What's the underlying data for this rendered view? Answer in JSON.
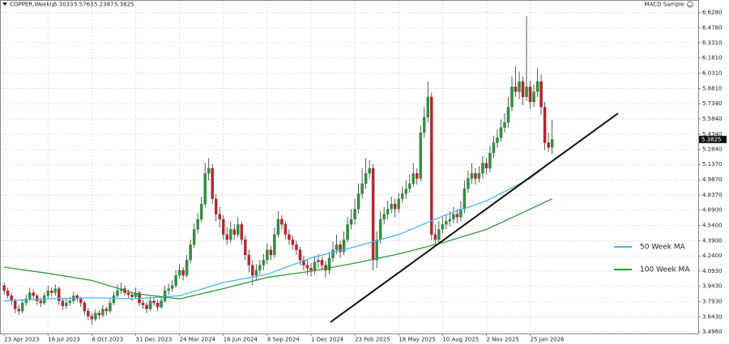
{
  "header": {
    "symbol": "COPPER,Weekly",
    "indicator": "MACD Sample"
  },
  "chart_data": {
    "type": "candlestick",
    "up_color": "#2f8f3f",
    "down_color": "#b3262c",
    "wick_color": "#333333",
    "grid": true,
    "xlim": [
      "2023-04-15",
      "2026-12-13"
    ],
    "ylim": [
      3.48,
      6.75
    ],
    "yticks": [
      {
        "value": 6.628,
        "label": "6.6280"
      },
      {
        "value": 6.478,
        "label": "6.4780"
      },
      {
        "value": 6.331,
        "label": "6.3310"
      },
      {
        "value": 6.181,
        "label": "6.1810"
      },
      {
        "value": 6.031,
        "label": "6.0310"
      },
      {
        "value": 5.881,
        "label": "5.8810"
      },
      {
        "value": 5.734,
        "label": "5.7340"
      },
      {
        "value": 5.584,
        "label": "5.5840"
      },
      {
        "value": 5.434,
        "label": "5.4340"
      },
      {
        "value": 5.284,
        "label": "5.2840"
      },
      {
        "value": 5.137,
        "label": "5.1370"
      },
      {
        "value": 4.987,
        "label": "4.9870"
      },
      {
        "value": 4.837,
        "label": "4.8370"
      },
      {
        "value": 4.69,
        "label": "4.6900"
      },
      {
        "value": 4.54,
        "label": "4.5400"
      },
      {
        "value": 4.39,
        "label": "4.3900"
      },
      {
        "value": 4.24,
        "label": "4.2400"
      },
      {
        "value": 4.093,
        "label": "4.0930"
      },
      {
        "value": 3.943,
        "label": "3.9430"
      },
      {
        "value": 3.793,
        "label": "3.7930"
      },
      {
        "value": 3.643,
        "label": "3.6430"
      },
      {
        "value": 3.496,
        "label": "3.4960"
      }
    ],
    "xticks": [
      {
        "value": "2023-04-23",
        "label": "23 Apr 2023"
      },
      {
        "value": "2023-07-16",
        "label": "16 Jul 2023"
      },
      {
        "value": "2023-10-08",
        "label": "8 Oct 2023"
      },
      {
        "value": "2023-12-31",
        "label": "31 Dec 2023"
      },
      {
        "value": "2024-03-24",
        "label": "24 Mar 2024"
      },
      {
        "value": "2024-06-16",
        "label": "16 Jun 2024"
      },
      {
        "value": "2024-09-08",
        "label": "8 Sep 2024"
      },
      {
        "value": "2024-12-01",
        "label": "1 Dec 2024"
      },
      {
        "value": "2025-02-23",
        "label": "23 Feb 2025"
      },
      {
        "value": "2025-05-18",
        "label": "18 May 2025"
      },
      {
        "value": "2025-08-10",
        "label": "10 Aug 2025"
      },
      {
        "value": "2025-11-02",
        "label": "2 Nov 2025"
      },
      {
        "value": "2026-01-25",
        "label": "25 Jan 2026"
      }
    ],
    "x": [
      "2023-04-23",
      "2023-04-30",
      "2023-05-07",
      "2023-05-14",
      "2023-05-21",
      "2023-05-28",
      "2023-06-04",
      "2023-06-11",
      "2023-06-18",
      "2023-06-25",
      "2023-07-02",
      "2023-07-09",
      "2023-07-16",
      "2023-07-23",
      "2023-07-30",
      "2023-08-06",
      "2023-08-13",
      "2023-08-20",
      "2023-08-27",
      "2023-09-03",
      "2023-09-10",
      "2023-09-17",
      "2023-09-24",
      "2023-10-01",
      "2023-10-08",
      "2023-10-15",
      "2023-10-22",
      "2023-10-29",
      "2023-11-05",
      "2023-11-12",
      "2023-11-19",
      "2023-11-26",
      "2023-12-03",
      "2023-12-10",
      "2023-12-17",
      "2023-12-24",
      "2023-12-31",
      "2024-01-07",
      "2024-01-14",
      "2024-01-21",
      "2024-01-28",
      "2024-02-04",
      "2024-02-11",
      "2024-02-18",
      "2024-02-25",
      "2024-03-03",
      "2024-03-10",
      "2024-03-17",
      "2024-03-24",
      "2024-03-31",
      "2024-04-07",
      "2024-04-14",
      "2024-04-21",
      "2024-04-28",
      "2024-05-05",
      "2024-05-12",
      "2024-05-19",
      "2024-05-26",
      "2024-06-02",
      "2024-06-09",
      "2024-06-16",
      "2024-06-23",
      "2024-06-30",
      "2024-07-07",
      "2024-07-14",
      "2024-07-21",
      "2024-07-28",
      "2024-08-04",
      "2024-08-11",
      "2024-08-18",
      "2024-08-25",
      "2024-09-01",
      "2024-09-08",
      "2024-09-15",
      "2024-09-22",
      "2024-09-29",
      "2024-10-06",
      "2024-10-13",
      "2024-10-20",
      "2024-10-27",
      "2024-11-03",
      "2024-11-10",
      "2024-11-17",
      "2024-11-24",
      "2024-12-01",
      "2024-12-08",
      "2024-12-15",
      "2024-12-22",
      "2024-12-29",
      "2025-01-05",
      "2025-01-12",
      "2025-01-19",
      "2025-01-26",
      "2025-02-02",
      "2025-02-09",
      "2025-02-16",
      "2025-02-23",
      "2025-03-02",
      "2025-03-09",
      "2025-03-16",
      "2025-03-23",
      "2025-03-30",
      "2025-04-06",
      "2025-04-13",
      "2025-04-20",
      "2025-04-27",
      "2025-05-04",
      "2025-05-11",
      "2025-05-18",
      "2025-05-25",
      "2025-06-01",
      "2025-06-08",
      "2025-06-15",
      "2025-06-22",
      "2025-06-29",
      "2025-07-06",
      "2025-07-13",
      "2025-07-20",
      "2025-07-27",
      "2025-08-03",
      "2025-08-10",
      "2025-08-17",
      "2025-08-24",
      "2025-08-31",
      "2025-09-07",
      "2025-09-14",
      "2025-09-21",
      "2025-09-28",
      "2025-10-05",
      "2025-10-12",
      "2025-10-19",
      "2025-10-26",
      "2025-11-02",
      "2025-11-09",
      "2025-11-16",
      "2025-11-23",
      "2025-11-30",
      "2025-12-07",
      "2025-12-14",
      "2025-12-21",
      "2025-12-28",
      "2026-01-04",
      "2026-01-11",
      "2026-01-18",
      "2026-01-25",
      "2026-02-01",
      "2026-02-08",
      "2026-02-15",
      "2026-02-22",
      "2026-03-01",
      "2026-03-08"
    ],
    "ohlc": [
      [
        3.95,
        3.98,
        3.86,
        3.9
      ],
      [
        3.9,
        3.93,
        3.82,
        3.85
      ],
      [
        3.85,
        3.88,
        3.76,
        3.8
      ],
      [
        3.8,
        3.82,
        3.68,
        3.72
      ],
      [
        3.72,
        3.76,
        3.66,
        3.7
      ],
      [
        3.7,
        3.82,
        3.68,
        3.78
      ],
      [
        3.78,
        3.86,
        3.75,
        3.82
      ],
      [
        3.82,
        3.93,
        3.8,
        3.88
      ],
      [
        3.88,
        3.91,
        3.82,
        3.85
      ],
      [
        3.85,
        3.87,
        3.76,
        3.8
      ],
      [
        3.8,
        3.83,
        3.74,
        3.78
      ],
      [
        3.78,
        3.88,
        3.76,
        3.85
      ],
      [
        3.85,
        3.95,
        3.83,
        3.9
      ],
      [
        3.9,
        3.93,
        3.84,
        3.88
      ],
      [
        3.88,
        3.96,
        3.85,
        3.92
      ],
      [
        3.92,
        3.94,
        3.76,
        3.8
      ],
      [
        3.8,
        3.83,
        3.71,
        3.75
      ],
      [
        3.75,
        3.82,
        3.72,
        3.78
      ],
      [
        3.78,
        3.84,
        3.75,
        3.8
      ],
      [
        3.8,
        3.89,
        3.77,
        3.85
      ],
      [
        3.85,
        3.87,
        3.79,
        3.82
      ],
      [
        3.82,
        3.84,
        3.74,
        3.78
      ],
      [
        3.78,
        3.8,
        3.66,
        3.7
      ],
      [
        3.7,
        3.73,
        3.61,
        3.65
      ],
      [
        3.65,
        3.68,
        3.57,
        3.62
      ],
      [
        3.62,
        3.72,
        3.6,
        3.68
      ],
      [
        3.68,
        3.71,
        3.62,
        3.66
      ],
      [
        3.66,
        3.76,
        3.64,
        3.72
      ],
      [
        3.72,
        3.74,
        3.66,
        3.7
      ],
      [
        3.7,
        3.82,
        3.68,
        3.78
      ],
      [
        3.78,
        3.89,
        3.76,
        3.85
      ],
      [
        3.85,
        3.96,
        3.83,
        3.9
      ],
      [
        3.9,
        3.98,
        3.87,
        3.92
      ],
      [
        3.92,
        3.95,
        3.85,
        3.88
      ],
      [
        3.88,
        3.91,
        3.83,
        3.86
      ],
      [
        3.86,
        3.89,
        3.8,
        3.84
      ],
      [
        3.84,
        3.93,
        3.82,
        3.88
      ],
      [
        3.88,
        3.9,
        3.75,
        3.78
      ],
      [
        3.78,
        3.81,
        3.72,
        3.76
      ],
      [
        3.76,
        3.79,
        3.68,
        3.72
      ],
      [
        3.72,
        3.84,
        3.7,
        3.8
      ],
      [
        3.8,
        3.83,
        3.75,
        3.78
      ],
      [
        3.78,
        3.81,
        3.7,
        3.74
      ],
      [
        3.74,
        3.84,
        3.72,
        3.8
      ],
      [
        3.8,
        3.95,
        3.78,
        3.9
      ],
      [
        3.9,
        3.97,
        3.86,
        3.92
      ],
      [
        3.92,
        4.0,
        3.89,
        3.95
      ],
      [
        3.95,
        4.1,
        3.93,
        4.05
      ],
      [
        4.05,
        4.16,
        4.02,
        4.1
      ],
      [
        4.1,
        4.13,
        4.0,
        4.05
      ],
      [
        4.05,
        4.25,
        4.03,
        4.2
      ],
      [
        4.2,
        4.4,
        4.17,
        4.35
      ],
      [
        4.35,
        4.56,
        4.32,
        4.5
      ],
      [
        4.5,
        4.66,
        4.46,
        4.6
      ],
      [
        4.6,
        4.82,
        4.57,
        4.75
      ],
      [
        4.75,
        5.15,
        4.72,
        5.05
      ],
      [
        5.05,
        5.2,
        4.98,
        5.1
      ],
      [
        5.1,
        5.14,
        4.75,
        4.8
      ],
      [
        4.8,
        4.85,
        4.58,
        4.65
      ],
      [
        4.65,
        4.72,
        4.52,
        4.6
      ],
      [
        4.6,
        4.64,
        4.4,
        4.45
      ],
      [
        4.45,
        4.52,
        4.35,
        4.4
      ],
      [
        4.4,
        4.58,
        4.37,
        4.5
      ],
      [
        4.5,
        4.55,
        4.4,
        4.45
      ],
      [
        4.45,
        4.62,
        4.42,
        4.55
      ],
      [
        4.55,
        4.58,
        4.35,
        4.4
      ],
      [
        4.4,
        4.44,
        4.2,
        4.25
      ],
      [
        4.25,
        4.3,
        4.08,
        4.15
      ],
      [
        4.15,
        4.2,
        3.95,
        4.05
      ],
      [
        4.05,
        4.16,
        4.0,
        4.1
      ],
      [
        4.1,
        4.2,
        4.06,
        4.15
      ],
      [
        4.15,
        4.26,
        4.1,
        4.2
      ],
      [
        4.2,
        4.36,
        4.16,
        4.3
      ],
      [
        4.3,
        4.34,
        4.2,
        4.25
      ],
      [
        4.25,
        4.52,
        4.22,
        4.45
      ],
      [
        4.45,
        4.68,
        4.42,
        4.6
      ],
      [
        4.6,
        4.64,
        4.5,
        4.55
      ],
      [
        4.55,
        4.58,
        4.4,
        4.45
      ],
      [
        4.45,
        4.5,
        4.35,
        4.4
      ],
      [
        4.4,
        4.44,
        4.3,
        4.35
      ],
      [
        4.35,
        4.39,
        4.25,
        4.3
      ],
      [
        4.3,
        4.33,
        4.15,
        4.2
      ],
      [
        4.2,
        4.24,
        4.1,
        4.15
      ],
      [
        4.15,
        4.2,
        4.05,
        4.12
      ],
      [
        4.12,
        4.17,
        4.04,
        4.1
      ],
      [
        4.1,
        4.24,
        4.06,
        4.18
      ],
      [
        4.18,
        4.26,
        4.12,
        4.2
      ],
      [
        4.2,
        4.23,
        4.1,
        4.15
      ],
      [
        4.15,
        4.19,
        4.03,
        4.1
      ],
      [
        4.1,
        4.28,
        4.06,
        4.22
      ],
      [
        4.22,
        4.38,
        4.18,
        4.3
      ],
      [
        4.3,
        4.45,
        4.26,
        4.35
      ],
      [
        4.35,
        4.39,
        4.22,
        4.28
      ],
      [
        4.28,
        4.48,
        4.25,
        4.4
      ],
      [
        4.4,
        4.62,
        4.37,
        4.55
      ],
      [
        4.55,
        4.7,
        4.5,
        4.6
      ],
      [
        4.6,
        4.8,
        4.55,
        4.7
      ],
      [
        4.7,
        4.95,
        4.66,
        4.85
      ],
      [
        4.85,
        5.1,
        4.8,
        4.95
      ],
      [
        4.95,
        5.2,
        4.9,
        5.05
      ],
      [
        5.05,
        5.18,
        5.0,
        5.1
      ],
      [
        5.1,
        5.14,
        4.1,
        4.2
      ],
      [
        4.2,
        4.48,
        4.12,
        4.4
      ],
      [
        4.4,
        4.68,
        4.36,
        4.6
      ],
      [
        4.6,
        4.72,
        4.55,
        4.65
      ],
      [
        4.65,
        4.78,
        4.6,
        4.7
      ],
      [
        4.7,
        4.82,
        4.66,
        4.75
      ],
      [
        4.75,
        4.8,
        4.62,
        4.7
      ],
      [
        4.7,
        4.86,
        4.66,
        4.8
      ],
      [
        4.8,
        4.92,
        4.76,
        4.85
      ],
      [
        4.85,
        4.98,
        4.8,
        4.9
      ],
      [
        4.9,
        5.04,
        4.86,
        4.95
      ],
      [
        4.95,
        5.15,
        4.92,
        5.05
      ],
      [
        5.05,
        5.1,
        4.94,
        5.0
      ],
      [
        5.0,
        5.52,
        4.97,
        5.45
      ],
      [
        5.45,
        5.7,
        5.4,
        5.6
      ],
      [
        5.6,
        5.95,
        5.55,
        5.8
      ],
      [
        5.8,
        5.84,
        4.4,
        4.45
      ],
      [
        4.45,
        4.55,
        4.35,
        4.4
      ],
      [
        4.4,
        4.58,
        4.36,
        4.5
      ],
      [
        4.5,
        4.62,
        4.46,
        4.55
      ],
      [
        4.55,
        4.64,
        4.5,
        4.58
      ],
      [
        4.58,
        4.68,
        4.53,
        4.6
      ],
      [
        4.6,
        4.72,
        4.56,
        4.65
      ],
      [
        4.65,
        4.7,
        4.56,
        4.62
      ],
      [
        4.62,
        4.78,
        4.58,
        4.7
      ],
      [
        4.7,
        4.98,
        4.66,
        4.9
      ],
      [
        4.9,
        5.08,
        4.86,
        5.0
      ],
      [
        5.0,
        5.15,
        4.95,
        5.05
      ],
      [
        5.05,
        5.1,
        4.94,
        5.0
      ],
      [
        5.0,
        5.12,
        4.96,
        5.05
      ],
      [
        5.05,
        5.22,
        5.0,
        5.15
      ],
      [
        5.15,
        5.2,
        5.04,
        5.1
      ],
      [
        5.1,
        5.32,
        5.06,
        5.25
      ],
      [
        5.25,
        5.42,
        5.2,
        5.35
      ],
      [
        5.35,
        5.48,
        5.3,
        5.4
      ],
      [
        5.4,
        5.58,
        5.36,
        5.5
      ],
      [
        5.5,
        5.64,
        5.45,
        5.55
      ],
      [
        5.55,
        5.8,
        5.5,
        5.7
      ],
      [
        5.7,
        6.0,
        5.66,
        5.9
      ],
      [
        5.9,
        6.1,
        5.8,
        5.85
      ],
      [
        5.85,
        6.05,
        5.78,
        5.95
      ],
      [
        5.95,
        6.0,
        5.72,
        5.8
      ],
      [
        5.8,
        6.59,
        5.76,
        5.9
      ],
      [
        5.9,
        5.96,
        5.68,
        5.75
      ],
      [
        5.75,
        5.92,
        5.7,
        5.85
      ],
      [
        5.85,
        6.08,
        5.8,
        5.95
      ],
      [
        5.95,
        6.02,
        5.62,
        5.7
      ],
      [
        5.7,
        5.75,
        5.28,
        5.35
      ],
      [
        5.35,
        5.45,
        5.26,
        5.3033
      ],
      [
        5.3033,
        5.5763,
        5.2387,
        5.3825
      ]
    ],
    "series": [
      {
        "name": "50 Week MA",
        "color": "#4fb3f0",
        "x": [
          "2023-04-23",
          "2023-07-16",
          "2023-10-08",
          "2023-12-31",
          "2024-03-24",
          "2024-06-16",
          "2024-09-08",
          "2024-12-01",
          "2025-02-23",
          "2025-05-18",
          "2025-08-10",
          "2025-11-02",
          "2026-01-25",
          "2026-03-08"
        ],
        "values": [
          3.8,
          3.82,
          3.83,
          3.82,
          3.85,
          3.98,
          4.06,
          4.22,
          4.33,
          4.45,
          4.63,
          4.78,
          5.0,
          5.17
        ]
      },
      {
        "name": "100 Week MA",
        "color": "#2e9a3a",
        "x": [
          "2023-04-23",
          "2023-07-16",
          "2023-10-08",
          "2023-12-31",
          "2024-03-24",
          "2024-06-16",
          "2024-09-08",
          "2024-12-01",
          "2025-02-23",
          "2025-05-18",
          "2025-08-10",
          "2025-11-02",
          "2026-01-25",
          "2026-03-08"
        ],
        "values": [
          4.13,
          4.07,
          4.0,
          3.87,
          3.82,
          3.92,
          4.03,
          4.09,
          4.17,
          4.26,
          4.37,
          4.5,
          4.7,
          4.8
        ]
      }
    ]
  }
}
